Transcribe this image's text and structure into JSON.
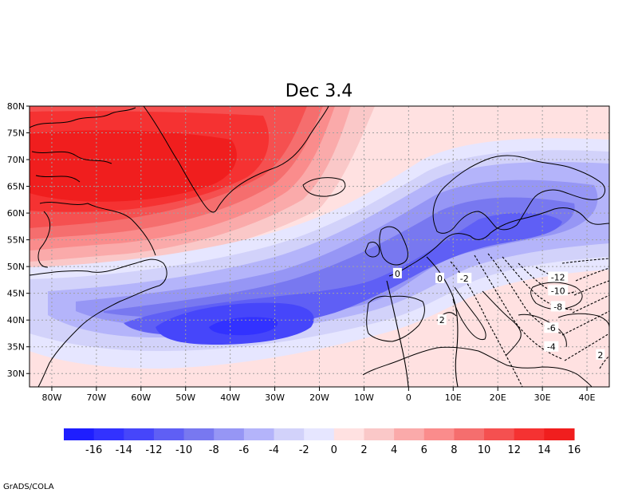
{
  "title": "Dec 3.4",
  "credit": "GrADS/COLA",
  "map": {
    "lon_range": [
      -85,
      45
    ],
    "lat_range": [
      27.5,
      80
    ],
    "lon_ticks": [
      {
        "value": -80,
        "label": "80W"
      },
      {
        "value": -70,
        "label": "70W"
      },
      {
        "value": -60,
        "label": "60W"
      },
      {
        "value": -50,
        "label": "50W"
      },
      {
        "value": -40,
        "label": "40W"
      },
      {
        "value": -30,
        "label": "30W"
      },
      {
        "value": -20,
        "label": "20W"
      },
      {
        "value": -10,
        "label": "10W"
      },
      {
        "value": 0,
        "label": "0"
      },
      {
        "value": 10,
        "label": "10E"
      },
      {
        "value": 20,
        "label": "20E"
      },
      {
        "value": 30,
        "label": "30E"
      },
      {
        "value": 40,
        "label": "40E"
      }
    ],
    "lat_ticks": [
      {
        "value": 30,
        "label": "30N"
      },
      {
        "value": 35,
        "label": "35N"
      },
      {
        "value": 40,
        "label": "40N"
      },
      {
        "value": 45,
        "label": "45N"
      },
      {
        "value": 50,
        "label": "50N"
      },
      {
        "value": 55,
        "label": "55N"
      },
      {
        "value": 60,
        "label": "60N"
      },
      {
        "value": 65,
        "label": "65N"
      },
      {
        "value": 70,
        "label": "70N"
      },
      {
        "value": 75,
        "label": "75N"
      },
      {
        "value": 80,
        "label": "80N"
      }
    ],
    "grid": "dotted",
    "shaded_field_centers": [
      {
        "name": "positive-max",
        "lon": -55,
        "lat": 68,
        "value": 16
      },
      {
        "name": "negative-min",
        "lon": -40,
        "lat": 38.5,
        "value": -15
      },
      {
        "name": "negative-secondary",
        "lon": 25,
        "lat": 56,
        "value": -9
      }
    ],
    "contour_labels": [
      {
        "text": "0",
        "lon": -2.5,
        "lat": 48.7
      },
      {
        "text": "0",
        "lon": 7,
        "lat": 47.8
      },
      {
        "text": "-2",
        "lon": 12.5,
        "lat": 47.8
      },
      {
        "text": "2",
        "lon": 7.5,
        "lat": 40
      },
      {
        "text": "-12",
        "lon": 33.5,
        "lat": 48
      },
      {
        "text": "-10",
        "lon": 33.5,
        "lat": 45.5
      },
      {
        "text": "-8",
        "lon": 33.5,
        "lat": 42.5
      },
      {
        "text": "-6",
        "lon": 32,
        "lat": 38.5
      },
      {
        "text": "-4",
        "lon": 32,
        "lat": 35
      },
      {
        "text": "2",
        "lon": 43,
        "lat": 33.5
      }
    ]
  },
  "colorbar": {
    "colors": [
      "#1e1eff",
      "#3232ff",
      "#4646fa",
      "#5f5ff5",
      "#7878f0",
      "#9696f5",
      "#b4b4fa",
      "#d2d2fa",
      "#e6e6ff",
      "#ffe1e1",
      "#fac8c8",
      "#faaaaa",
      "#fa8c8c",
      "#f56e6e",
      "#f55050",
      "#f53232",
      "#f01e1e"
    ],
    "labels": [
      "-16",
      "-14",
      "-12",
      "-10",
      "-8",
      "-6",
      "-4",
      "-2",
      "0",
      "2",
      "4",
      "6",
      "8",
      "10",
      "12",
      "14",
      "16"
    ]
  }
}
